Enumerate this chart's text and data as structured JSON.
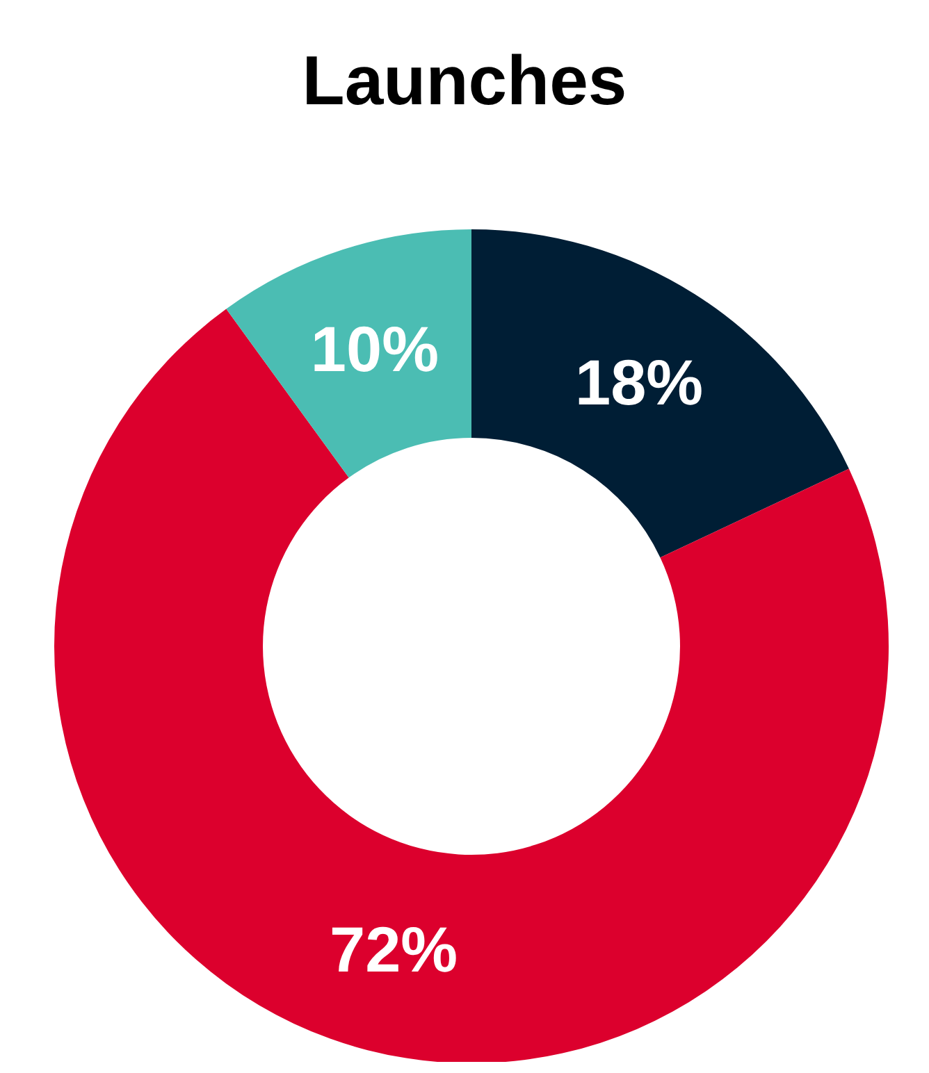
{
  "chart_data": {
    "type": "donut",
    "title": "Launches",
    "categories": [
      null,
      null,
      null
    ],
    "values": [
      18,
      72,
      10
    ],
    "colors": [
      "#001e35",
      "#dc002d",
      "#4bbdb3"
    ],
    "value_labels": [
      "18%",
      "72%",
      "10%"
    ]
  }
}
